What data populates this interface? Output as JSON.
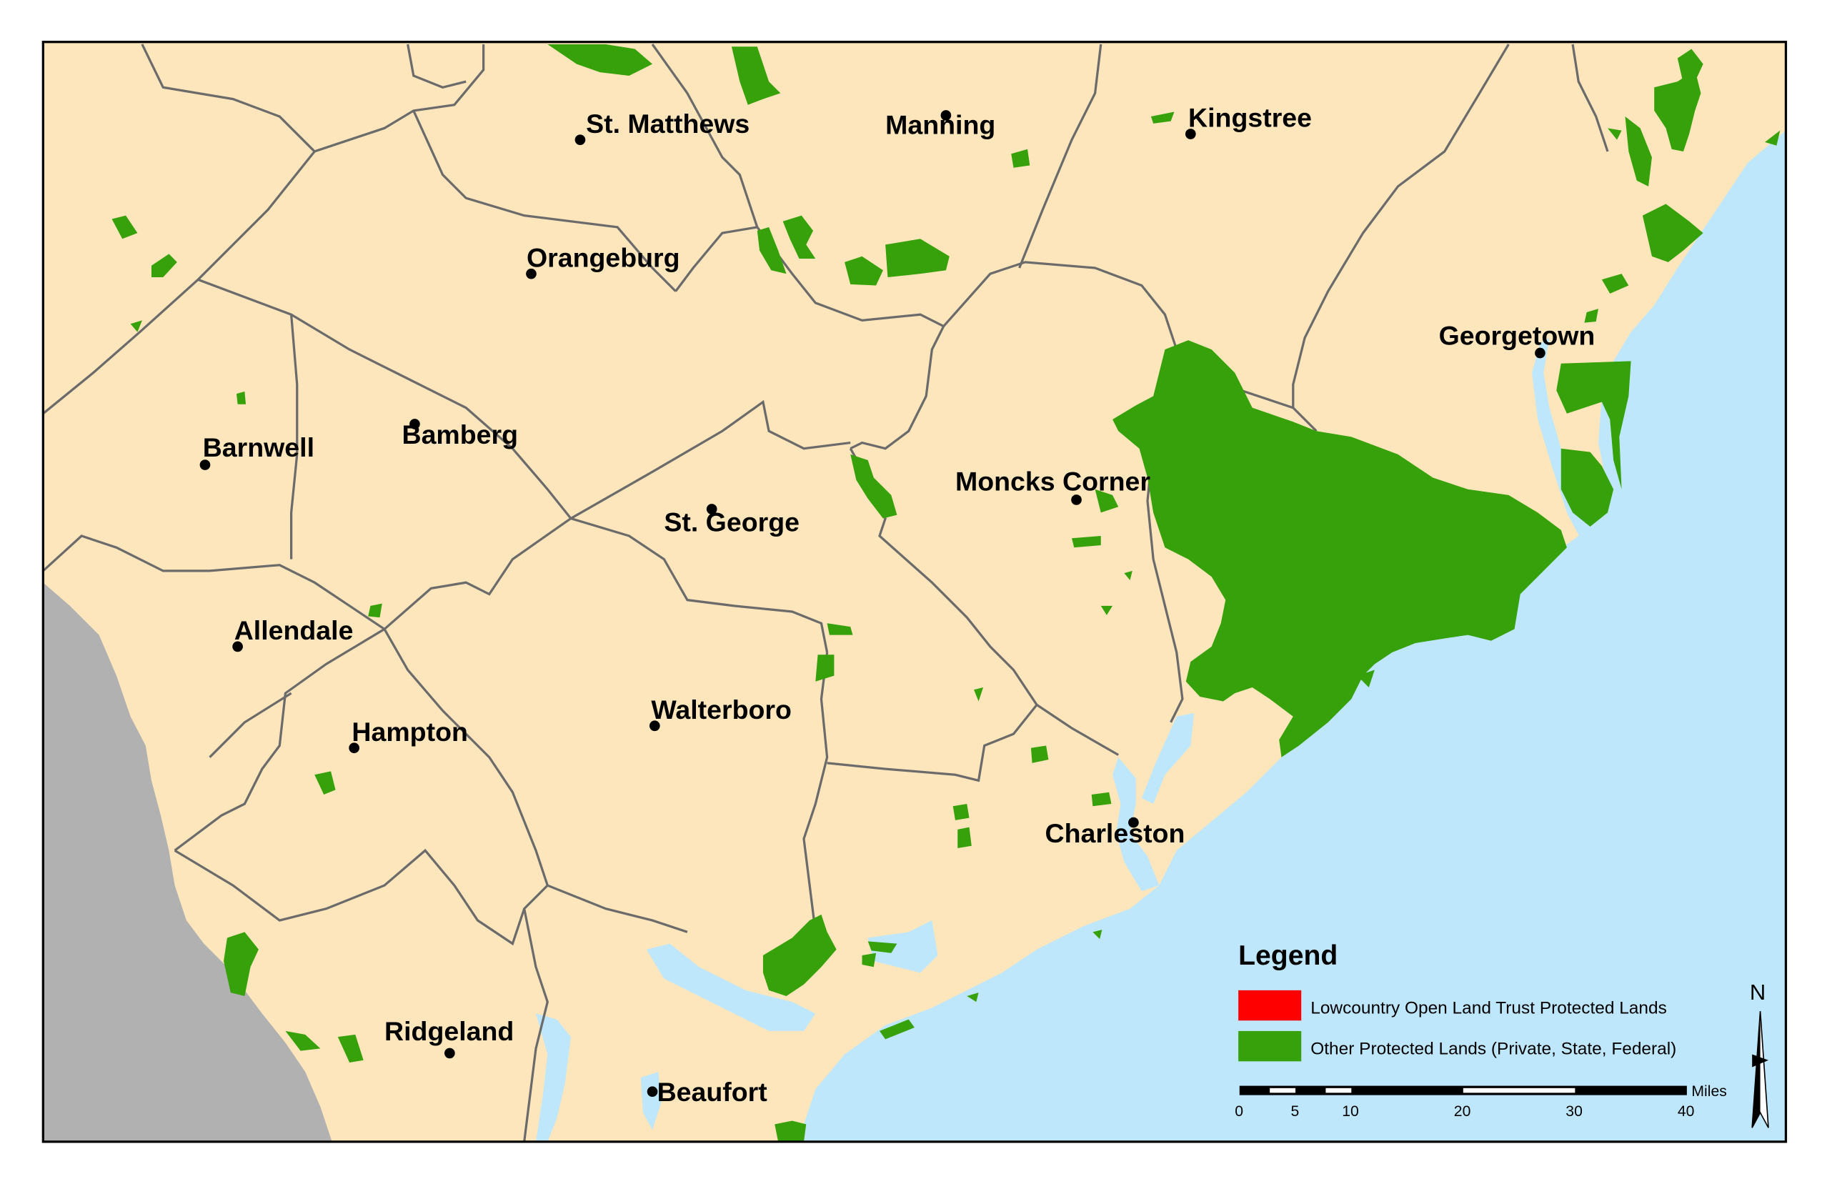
{
  "colors": {
    "land": "#fde6bb",
    "ocean": "#bfe7fb",
    "out_of_state": "#b1b1b1",
    "protected_other": "#36a10a",
    "protected_lolt": "#ff0000",
    "county_line": "#6b6b6b"
  },
  "cities": [
    {
      "name": "St. Matthews"
    },
    {
      "name": "Manning"
    },
    {
      "name": "Kingstree"
    },
    {
      "name": "Orangeburg"
    },
    {
      "name": "Georgetown"
    },
    {
      "name": "Barnwell"
    },
    {
      "name": "Bamberg"
    },
    {
      "name": "Moncks Corner"
    },
    {
      "name": "St. George"
    },
    {
      "name": "Allendale"
    },
    {
      "name": "Walterboro"
    },
    {
      "name": "Hampton"
    },
    {
      "name": "Charleston"
    },
    {
      "name": "Ridgeland"
    },
    {
      "name": "Beaufort"
    }
  ],
  "legend": {
    "title": "Legend",
    "items": [
      {
        "label": "Lowcountry Open Land Trust Protected Lands",
        "color": "#ff0000"
      },
      {
        "label": "Other Protected Lands (Private, State, Federal)",
        "color": "#36a10a"
      }
    ]
  },
  "scale_bar": {
    "unit": "Miles",
    "ticks": [
      "0",
      "5",
      "10",
      "20",
      "30",
      "40"
    ]
  },
  "north_arrow": {
    "label": "N",
    "icon": "north-arrow-icon"
  }
}
